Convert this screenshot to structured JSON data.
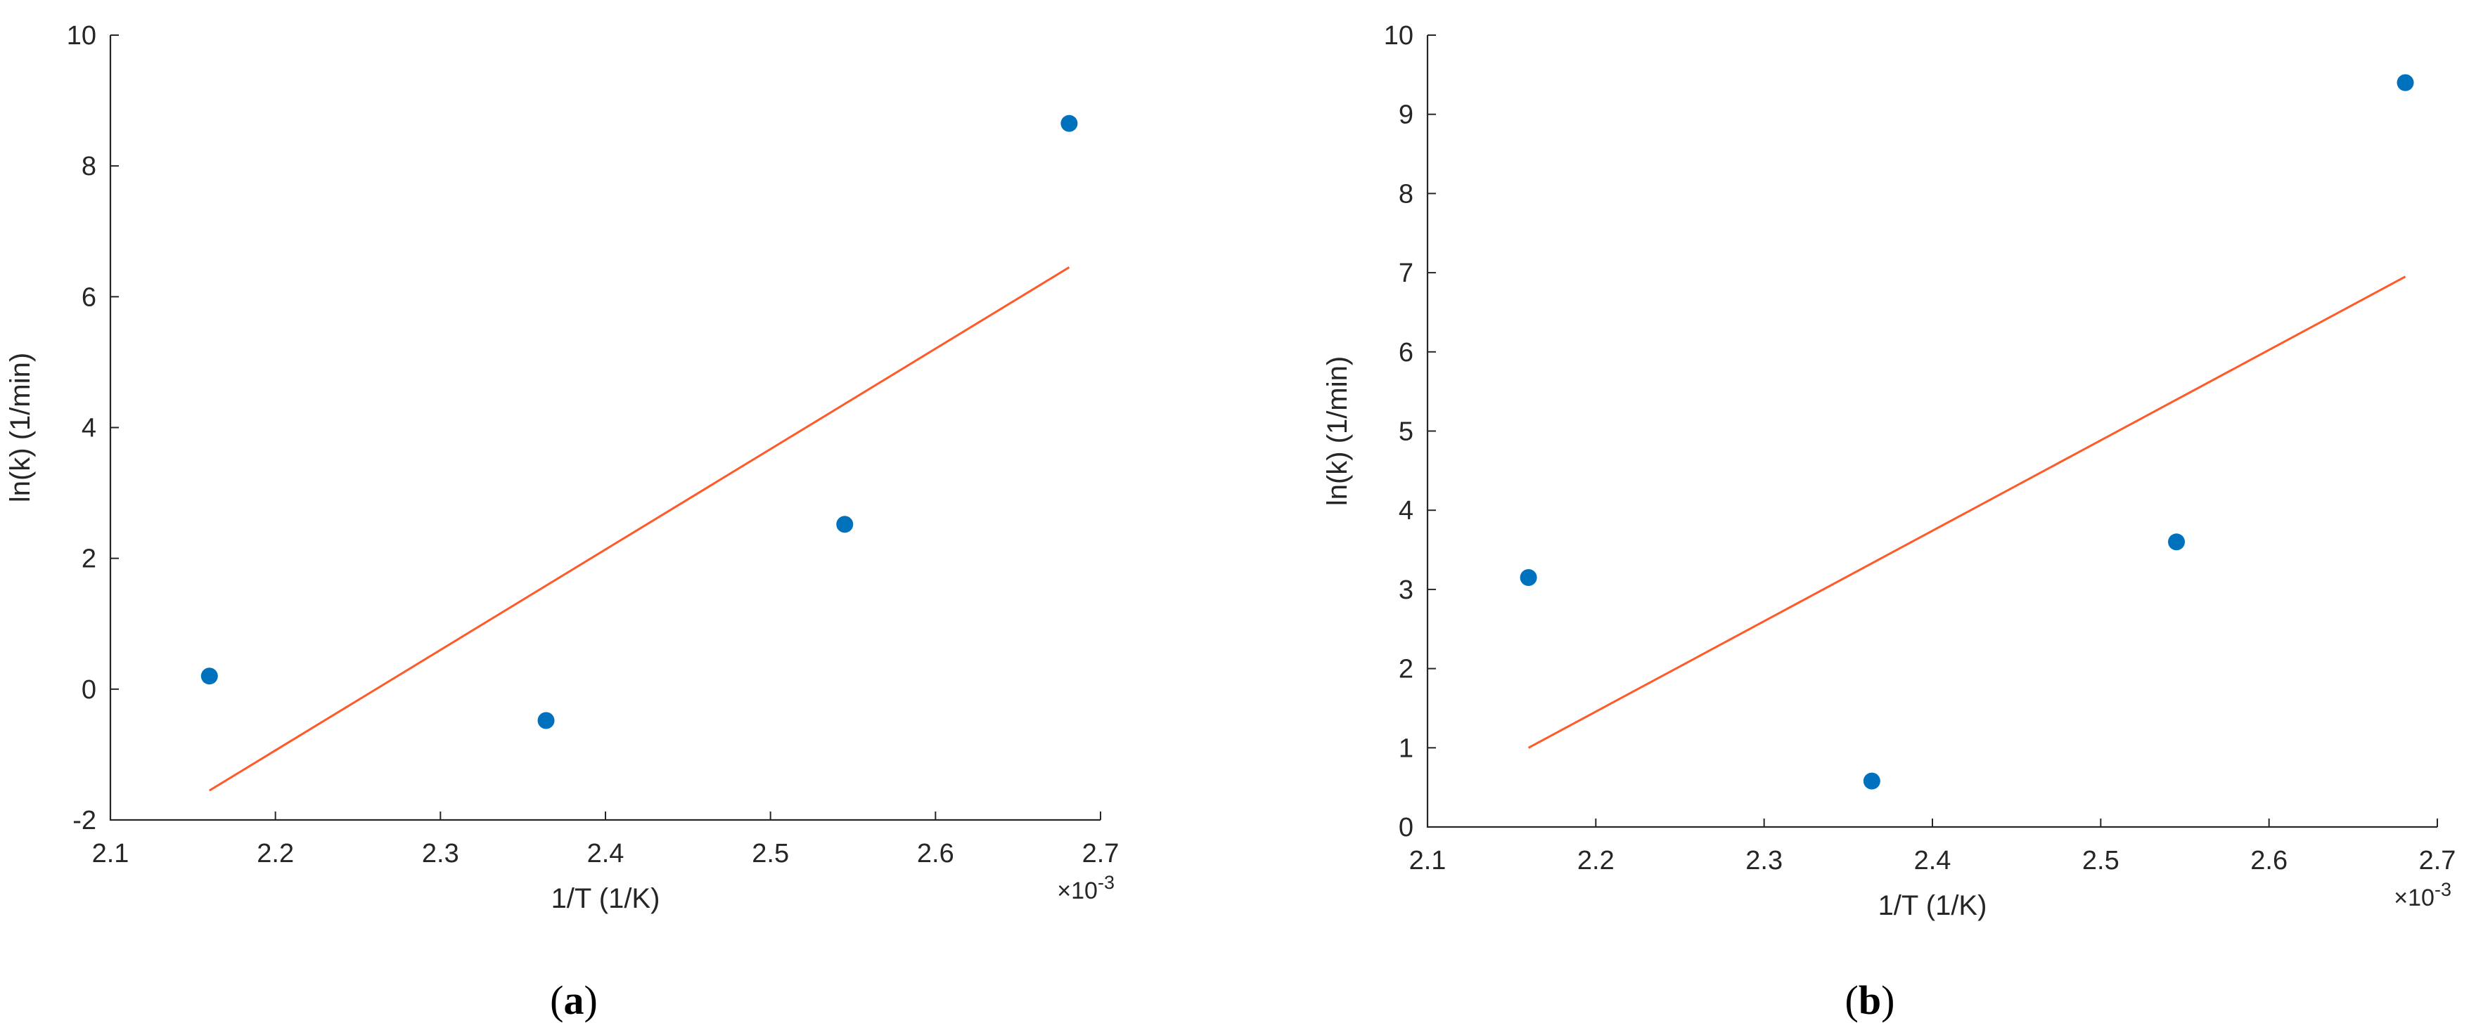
{
  "chart_data": [
    {
      "type": "scatter",
      "panel_label": "a",
      "xlabel": "1/T (1/K)",
      "ylabel": "ln(k) (1/min)",
      "x_exponent_label": "×10",
      "x_exponent": "-3",
      "xlim": [
        2.1,
        2.7
      ],
      "ylim": [
        -2,
        10
      ],
      "x_ticks": [
        "2.1",
        "2.2",
        "2.3",
        "2.4",
        "2.5",
        "2.6",
        "2.7"
      ],
      "y_ticks": [
        "-2",
        "0",
        "2",
        "4",
        "6",
        "8",
        "10"
      ],
      "grid": false,
      "series": [
        {
          "kind": "points",
          "color": "#0072BD",
          "x": [
            2.16,
            2.364,
            2.545,
            2.681
          ],
          "y": [
            0.2,
            -0.48,
            2.52,
            8.65
          ]
        },
        {
          "kind": "fit-line",
          "color": "#FF5A28",
          "x": [
            2.16,
            2.681
          ],
          "y": [
            -1.55,
            6.45
          ]
        }
      ]
    },
    {
      "type": "scatter",
      "panel_label": "b",
      "xlabel": "1/T (1/K)",
      "ylabel": "ln(k) (1/min)",
      "x_exponent_label": "×10",
      "x_exponent": "-3",
      "xlim": [
        2.1,
        2.7
      ],
      "ylim": [
        0,
        10
      ],
      "x_ticks": [
        "2.1",
        "2.2",
        "2.3",
        "2.4",
        "2.5",
        "2.6",
        "2.7"
      ],
      "y_ticks": [
        "0",
        "1",
        "2",
        "3",
        "4",
        "5",
        "6",
        "7",
        "8",
        "9",
        "10"
      ],
      "grid": false,
      "series": [
        {
          "kind": "points",
          "color": "#0072BD",
          "x": [
            2.16,
            2.364,
            2.545,
            2.681
          ],
          "y": [
            3.15,
            0.58,
            3.6,
            9.4
          ]
        },
        {
          "kind": "fit-line",
          "color": "#FF5A28",
          "x": [
            2.16,
            2.681
          ],
          "y": [
            1.0,
            6.95
          ]
        }
      ]
    }
  ],
  "captions": [
    "a",
    "b"
  ]
}
